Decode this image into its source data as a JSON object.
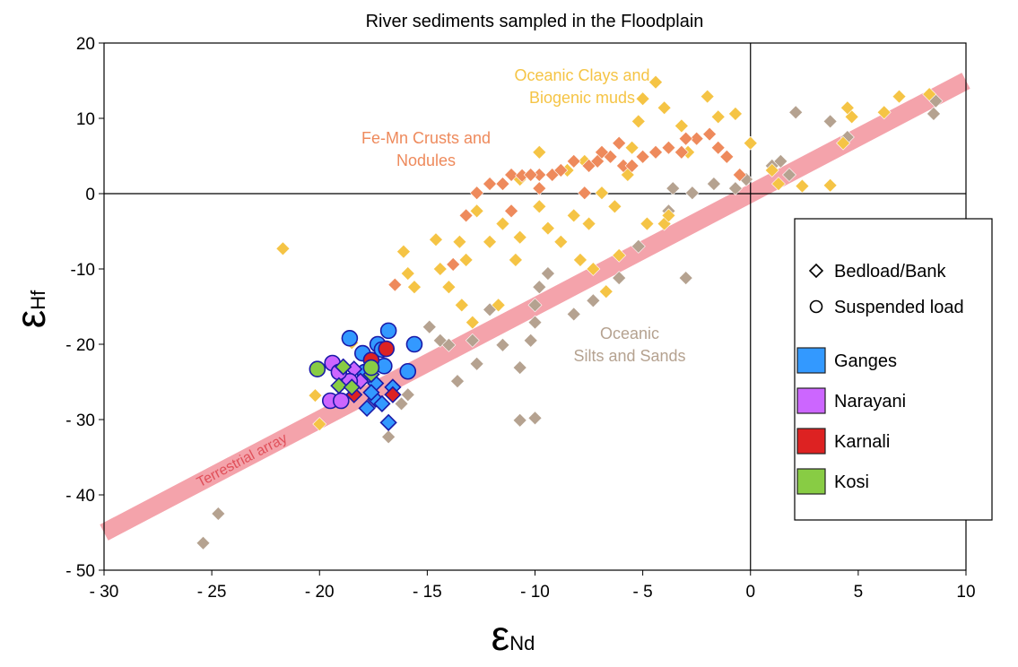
{
  "chart_data": {
    "type": "scatter",
    "title": "River sediments sampled in the Floodplain",
    "x_label": {
      "symbol": "ε",
      "subscript": "Nd"
    },
    "y_label": {
      "symbol": "ε",
      "subscript": "Hf"
    },
    "xlim": [
      -30,
      10
    ],
    "ylim": [
      -50,
      20
    ],
    "xticks": [
      {
        "value": -30,
        "label": "- 30"
      },
      {
        "value": -25,
        "label": "- 25"
      },
      {
        "value": -20,
        "label": "- 20"
      },
      {
        "value": -15,
        "label": "- 15"
      },
      {
        "value": -10,
        "label": "- 10"
      },
      {
        "value": -5,
        "label": "- 5"
      },
      0,
      5,
      10
    ],
    "yticks": [
      {
        "value": -50,
        "label": "- 50"
      },
      {
        "value": -40,
        "label": "- 40"
      },
      {
        "value": -30,
        "label": "- 30"
      },
      {
        "value": -20,
        "label": "- 20"
      },
      {
        "value": -10,
        "label": "-10"
      },
      0,
      10,
      20
    ],
    "terrestrial_array": {
      "label": "Terrestrial array",
      "color": "#f4a3ab",
      "x": [
        -30,
        10
      ],
      "y": [
        -45,
        15
      ]
    },
    "fields": [
      {
        "label": [
          "Oceanic",
          "Silts and Sands"
        ],
        "color": "#b5a290",
        "x": [
          -25.4,
          -24.7,
          -16.8,
          -16.2,
          -15.9,
          -13.6,
          -12.7,
          -14.9,
          -14.4,
          -14,
          -12.1,
          -11.5,
          -10.7,
          -10,
          -10.7,
          -10.2,
          -10,
          -10,
          -9.8,
          -9.4,
          -8.2,
          -7.3,
          -6.1,
          -5.2,
          -3,
          -3.8,
          -3.6,
          -2.7,
          -1.7,
          -0.7,
          -0.2,
          1,
          1.4,
          1.8,
          2.1,
          3.7,
          4.5,
          8.5,
          8.6,
          -12.9
        ],
        "y": [
          -46.4,
          -42.5,
          -32.3,
          -27.9,
          -26.7,
          -24.9,
          -22.6,
          -17.7,
          -19.5,
          -20.1,
          -15.4,
          -20.1,
          -30.1,
          -29.8,
          -23.1,
          -19.5,
          -17.1,
          -14.8,
          -12.4,
          -10.6,
          -16,
          -14.2,
          -11.2,
          -7,
          -11.2,
          -2.3,
          0.7,
          0.1,
          1.3,
          0.7,
          1.9,
          3.7,
          4.3,
          2.5,
          10.8,
          9.6,
          7.5,
          10.6,
          12.3,
          -19.5
        ]
      },
      {
        "label": [
          "Oceanic Clays and",
          "Biogenic muds"
        ],
        "color": "#f5c445",
        "x": [
          -21.7,
          -20,
          -20.2,
          -18.5,
          -16.1,
          -15.9,
          -15.6,
          -14.6,
          -14.4,
          -14,
          -13.5,
          -13.2,
          -13.4,
          -12.7,
          -12.1,
          -11.5,
          -10.9,
          -10.7,
          -9.8,
          -9.4,
          -8.8,
          -8.2,
          -7.5,
          -6.9,
          -6.3,
          -6.1,
          -6.7,
          -7.3,
          -5.7,
          -5.2,
          -5,
          -4.4,
          -4,
          -4.8,
          -4,
          -3.2,
          -2.9,
          -2,
          -1.5,
          -0.7,
          0,
          1,
          1.3,
          2.4,
          3.7,
          4.7,
          4.5,
          4.3,
          6.2,
          6.9,
          8.3,
          -3.8,
          -9.8,
          -7.7,
          -10.7,
          -7.9,
          -11.7,
          -12.9,
          -17.5,
          -8.5,
          -5.5
        ],
        "y": [
          -7.3,
          -30.6,
          -26.8,
          -19.8,
          -7.7,
          -10.6,
          -12.4,
          -6.1,
          -10,
          -12.4,
          -6.4,
          -8.8,
          -14.8,
          -2.3,
          -6.4,
          -4,
          -8.8,
          -5.8,
          -1.7,
          -4.6,
          -6.4,
          -2.9,
          -4,
          0.1,
          -1.7,
          -8.2,
          -13,
          -10,
          2.5,
          9.6,
          12.6,
          14.8,
          11.4,
          -4,
          -4,
          9,
          5.5,
          12.9,
          10.2,
          10.6,
          6.7,
          3.1,
          1.3,
          1,
          1.1,
          10.2,
          11.4,
          6.7,
          10.8,
          12.9,
          13.2,
          -2.9,
          5.5,
          4.3,
          1.9,
          -8.8,
          -14.8,
          -17.1,
          -22.1,
          3.1,
          6.1
        ]
      },
      {
        "label": [
          "Fe-Mn Crusts and",
          "Nodules"
        ],
        "color": "#ee8a5c",
        "x": [
          -12.7,
          -12.1,
          -11.5,
          -11.1,
          -10.6,
          -11.1,
          -9.8,
          -9.2,
          -8.8,
          -8.2,
          -7.5,
          -7.1,
          -6.5,
          -5.9,
          -5.5,
          -5,
          -4.4,
          -3.8,
          -3.2,
          -2.5,
          -1.9,
          -1.5,
          -1.1,
          -6.1,
          -9.8,
          -10.2,
          -13.8,
          -16.5,
          -13.2,
          -7.7,
          -6.9,
          -3,
          -0.5
        ],
        "y": [
          0.1,
          1.3,
          1.3,
          2.5,
          2.4,
          -2.3,
          0.7,
          2.5,
          3.1,
          4.3,
          3.7,
          4.3,
          4.9,
          3.7,
          3.7,
          4.9,
          5.5,
          6.1,
          5.5,
          7.3,
          7.9,
          6.1,
          4.9,
          6.7,
          2.5,
          2.5,
          -9.4,
          -12.1,
          -2.9,
          0.1,
          5.5,
          7.3,
          2.5
        ]
      }
    ],
    "markers": [
      {
        "label": "Bedload/Bank",
        "shape": "diamond"
      },
      {
        "label": "Suspended load",
        "shape": "circle"
      }
    ],
    "series": [
      {
        "name": "Ganges",
        "color": "#3399ff",
        "diamond": {
          "x": [
            -17.8,
            -17.4,
            -17.1,
            -16.8,
            -16.6,
            -17.4,
            -17.6
          ],
          "y": [
            -28.5,
            -27.3,
            -27.9,
            -30.4,
            -25.7,
            -25.2,
            -26.4
          ]
        },
        "circle": {
          "x": [
            -16.8,
            -18.6,
            -17.3,
            -17.1,
            -15.6,
            -18,
            -15.9,
            -17,
            -17.9
          ],
          "y": [
            -18.2,
            -19.2,
            -20,
            -20.7,
            -20,
            -21.2,
            -23.6,
            -22.9,
            -23.7
          ]
        }
      },
      {
        "name": "Narayani",
        "color": "#cc66ff",
        "diamond": {
          "x": [
            -18.4,
            -18.1
          ],
          "y": [
            -23.3,
            -24.9
          ]
        },
        "circle": {
          "x": [
            -19.5,
            -19,
            -19.4,
            -18.6,
            -19.1
          ],
          "y": [
            -27.5,
            -27.5,
            -22.5,
            -24.9,
            -23.7
          ]
        }
      },
      {
        "name": "Karnali",
        "color": "#dd2222",
        "diamond": {
          "x": [
            -18.4,
            -16.6
          ],
          "y": [
            -26.7,
            -26.7
          ]
        },
        "circle": {
          "x": [
            -17.6,
            -16.9
          ],
          "y": [
            -22.1,
            -20.6
          ]
        }
      },
      {
        "name": "Kosi",
        "color": "#88cc44",
        "diamond": {
          "x": [
            -18.9,
            -19.1,
            -17.6,
            -18.5
          ],
          "y": [
            -23,
            -25.5,
            -24,
            -25.7
          ]
        },
        "circle": {
          "x": [
            -20.1,
            -17.6
          ],
          "y": [
            -23.3,
            -23.1
          ]
        }
      }
    ]
  }
}
